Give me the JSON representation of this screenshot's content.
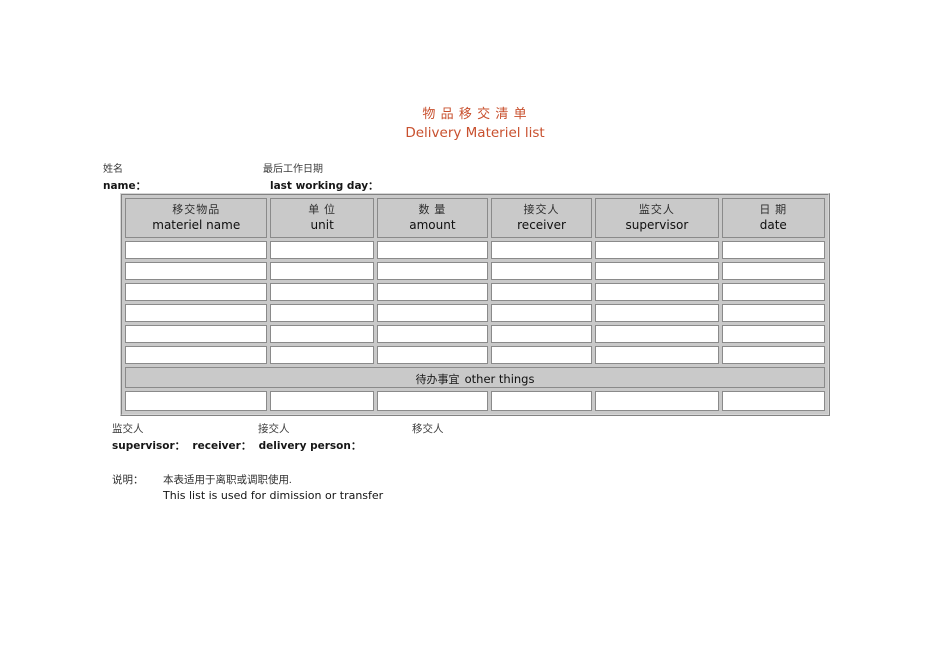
{
  "header": {
    "title_zh": "物 品 移 交 清 单",
    "title_en": "Delivery Materiel list"
  },
  "fields": {
    "name_zh": "姓名",
    "name_en": "name：",
    "last_day_zh": "最后工作日期",
    "last_day_en": "last working day："
  },
  "table": {
    "headers": [
      {
        "zh": "移交物品",
        "en": "materiel name"
      },
      {
        "zh": "单 位",
        "en": "unit"
      },
      {
        "zh": "数 量",
        "en": "amount"
      },
      {
        "zh": "接交人",
        "en": "receiver"
      },
      {
        "zh": "监交人",
        "en": "supervisor"
      },
      {
        "zh": "日 期",
        "en": "date"
      }
    ],
    "col_widths_pct": [
      20.8,
      15.1,
      16.2,
      14.8,
      18.0,
      15.1
    ],
    "empty_rows": 6,
    "other_things_zh": "待办事宜",
    "other_things_en": "other things"
  },
  "signatures": {
    "supervisor_zh": "监交人",
    "receiver_zh": "接交人",
    "delivery_zh": "移交人",
    "line_en": "supervisor：  receiver：  delivery person："
  },
  "notes": {
    "label_zh": "说明：",
    "line_zh": "本表适用于离职或调职使用.",
    "line_en": "This list is used for dimission or transfer"
  },
  "colors": {
    "accent": "#c8502e",
    "table_gray": "#c9c9c9",
    "cell_border": "#8a8a8a"
  }
}
